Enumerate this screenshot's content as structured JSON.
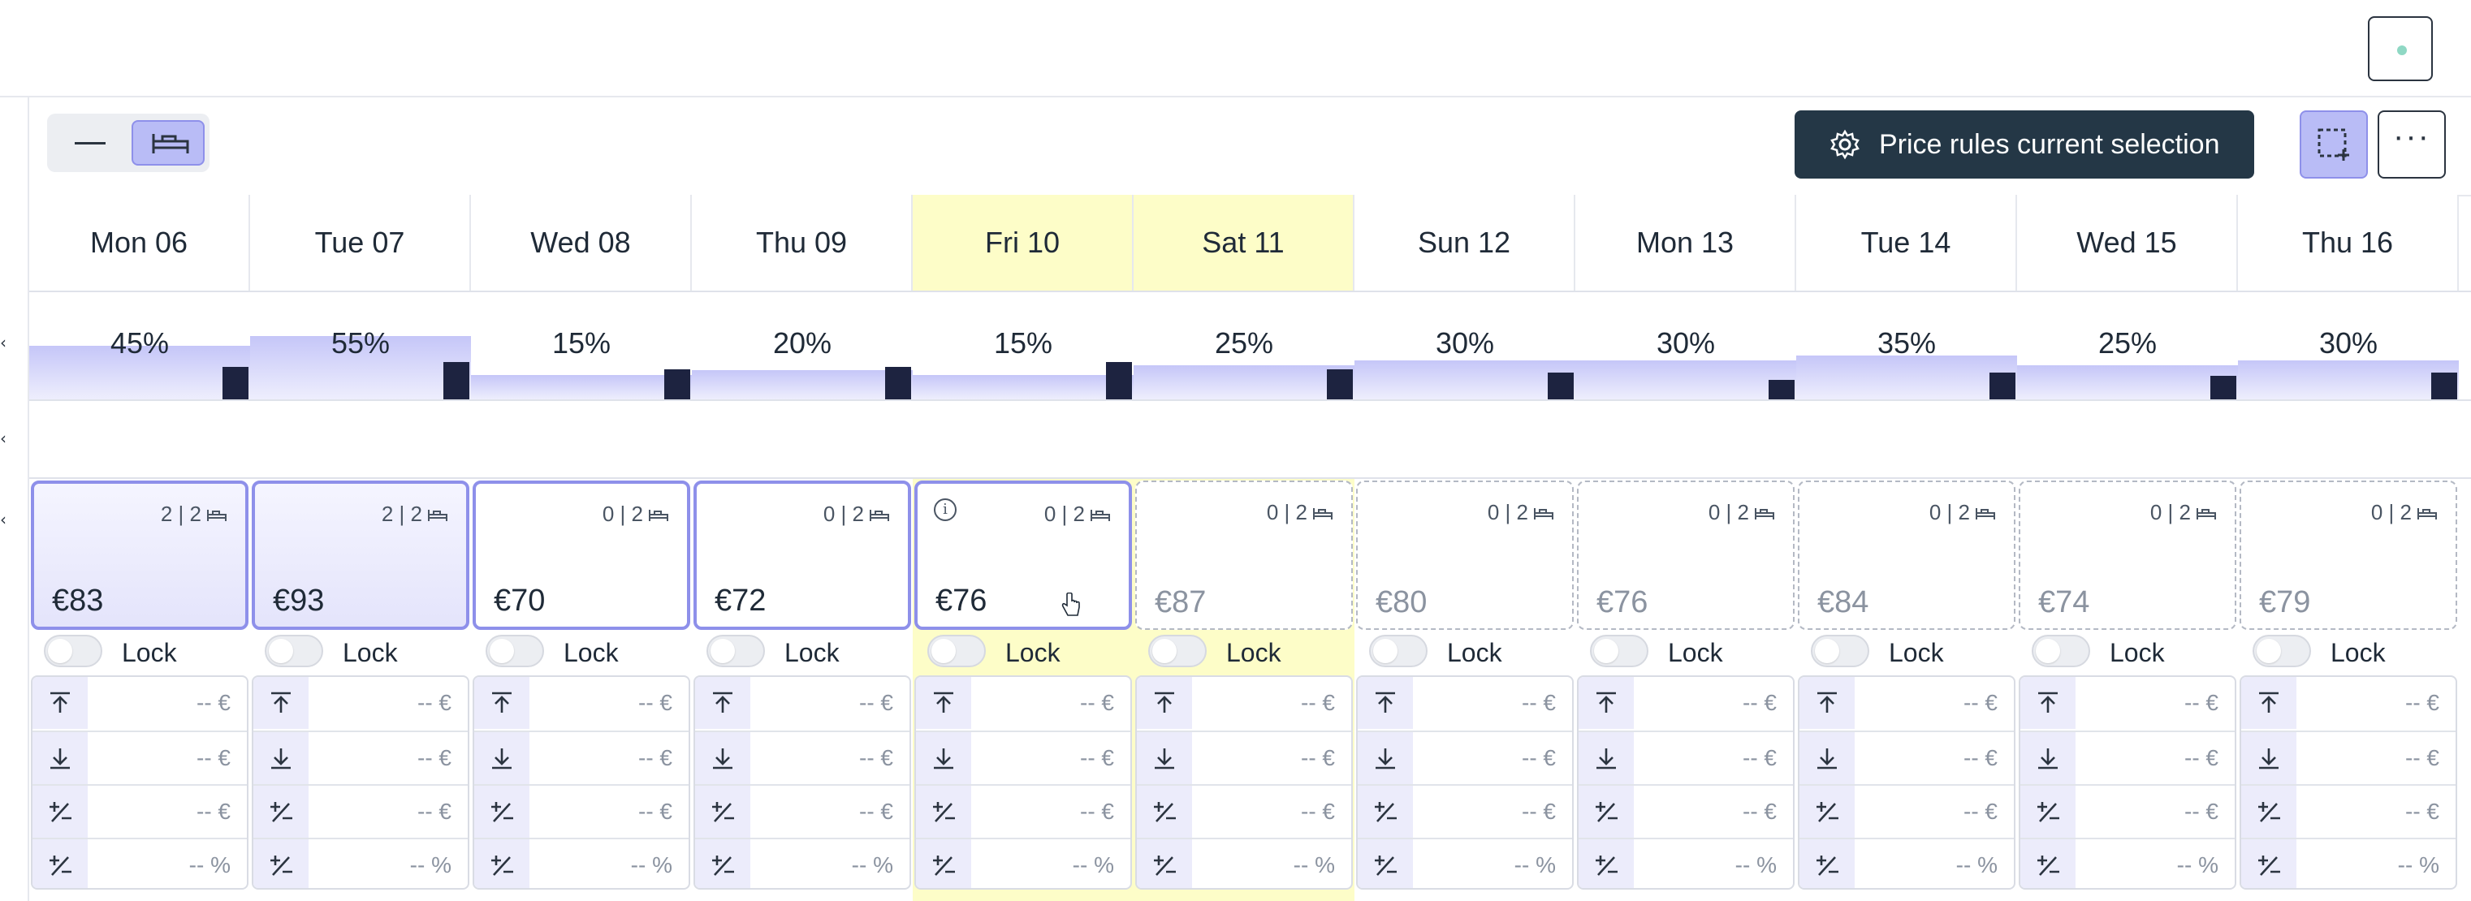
{
  "toolbar": {
    "price_rules_label": "Price rules current selection",
    "more_label": "···"
  },
  "lock_label": "Lock",
  "days": [
    {
      "label": "Mon 06",
      "occupancy": "45%",
      "occ_level": 0.45,
      "bar_level": 0.3,
      "avail": "2 | 2",
      "price": "€83",
      "state": "selected-filled",
      "weekend": false,
      "info": false
    },
    {
      "label": "Tue 07",
      "occupancy": "55%",
      "occ_level": 0.55,
      "bar_level": 0.35,
      "avail": "2 | 2",
      "price": "€93",
      "state": "selected-filled",
      "weekend": false,
      "info": false
    },
    {
      "label": "Wed 08",
      "occupancy": "15%",
      "occ_level": 0.15,
      "bar_level": 0.28,
      "avail": "0 | 2",
      "price": "€70",
      "state": "selected",
      "weekend": false,
      "info": false
    },
    {
      "label": "Thu 09",
      "occupancy": "20%",
      "occ_level": 0.2,
      "bar_level": 0.3,
      "avail": "0 | 2",
      "price": "€72",
      "state": "selected",
      "weekend": false,
      "info": false
    },
    {
      "label": "Fri 10",
      "occupancy": "15%",
      "occ_level": 0.15,
      "bar_level": 0.35,
      "avail": "0 | 2",
      "price": "€76",
      "state": "selected",
      "weekend": true,
      "info": true
    },
    {
      "label": "Sat 11",
      "occupancy": "25%",
      "occ_level": 0.25,
      "bar_level": 0.28,
      "avail": "0 | 2",
      "price": "€87",
      "state": "dashed",
      "weekend": true,
      "info": false
    },
    {
      "label": "Sun 12",
      "occupancy": "30%",
      "occ_level": 0.3,
      "bar_level": 0.25,
      "avail": "0 | 2",
      "price": "€80",
      "state": "dashed",
      "weekend": false,
      "info": false
    },
    {
      "label": "Mon 13",
      "occupancy": "30%",
      "occ_level": 0.3,
      "bar_level": 0.18,
      "avail": "0 | 2",
      "price": "€76",
      "state": "dashed",
      "weekend": false,
      "info": false
    },
    {
      "label": "Tue 14",
      "occupancy": "35%",
      "occ_level": 0.35,
      "bar_level": 0.25,
      "avail": "0 | 2",
      "price": "€84",
      "state": "dashed",
      "weekend": false,
      "info": false
    },
    {
      "label": "Wed 15",
      "occupancy": "25%",
      "occ_level": 0.25,
      "bar_level": 0.22,
      "avail": "0 | 2",
      "price": "€74",
      "state": "dashed",
      "weekend": false,
      "info": false
    },
    {
      "label": "Thu 16",
      "occupancy": "30%",
      "occ_level": 0.3,
      "bar_level": 0.25,
      "avail": "0 | 2",
      "price": "€79",
      "state": "dashed",
      "weekend": false,
      "info": false
    }
  ],
  "params": [
    {
      "icon": "arrow-up-to-line-icon",
      "value": "-- €"
    },
    {
      "icon": "arrow-down-to-line-icon",
      "value": "-- €"
    },
    {
      "icon": "plus-minus-icon",
      "value": "-- €"
    },
    {
      "icon": "plus-minus-icon",
      "value": "-- %"
    }
  ],
  "colors": {
    "accent": "#8e90ea",
    "accent_fill": "#b9bcf6",
    "dark_button": "#243746",
    "weekend": "#fdfdc8",
    "occupancy_bar": "#1d2340"
  }
}
